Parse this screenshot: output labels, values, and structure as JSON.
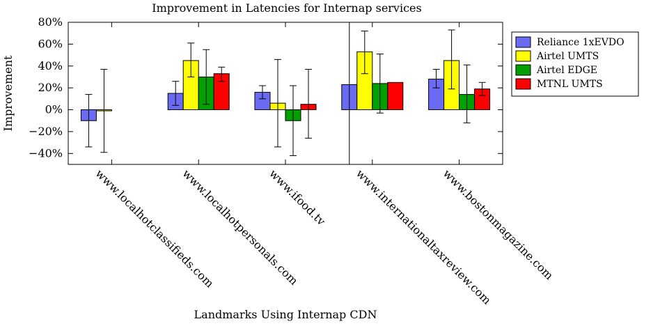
{
  "chart_data": {
    "type": "bar",
    "title": "Improvement in Latencies for Internap services",
    "xlabel": "Landmarks Using Internap CDN",
    "ylabel": "Improvement",
    "ylim": [
      -50,
      80
    ],
    "yticks": [
      -40,
      -20,
      0,
      20,
      40,
      60,
      80
    ],
    "ytick_labels": [
      "−40%",
      "−20%",
      "0%",
      "20%",
      "40%",
      "60%",
      "80%"
    ],
    "grid": false,
    "legend_position": "top-right",
    "categories": [
      "www.localhotclassifieds.com",
      "www.localhotpersonals.com",
      "www.ifood.tv",
      "www.internationaltaxreview.com",
      "www.bostonmagazine.com"
    ],
    "series": [
      {
        "name": "Reliance 1xEVDO",
        "color": "#6a6af2",
        "values": [
          -10,
          15,
          16,
          23,
          28
        ],
        "err_low": [
          -34,
          4,
          10,
          -100,
          20
        ],
        "err_high": [
          14,
          26,
          22,
          100,
          37
        ]
      },
      {
        "name": "Airtel UMTS",
        "color": "#ffff00",
        "values": [
          -1,
          45,
          6,
          53,
          45
        ],
        "err_low": [
          -39,
          30,
          -34,
          33,
          19
        ],
        "err_high": [
          37,
          61,
          46,
          72,
          73
        ]
      },
      {
        "name": "Airtel EDGE",
        "color": "#00a000",
        "values": [
          null,
          30,
          -10,
          24,
          14
        ],
        "err_low": [
          null,
          5,
          -42,
          -3,
          -12
        ],
        "err_high": [
          null,
          55,
          22,
          51,
          41
        ]
      },
      {
        "name": "MTNL UMTS",
        "color": "#ff0000",
        "values": [
          null,
          33,
          5,
          25,
          19
        ],
        "err_low": [
          null,
          26,
          -26,
          null,
          13
        ],
        "err_high": [
          null,
          39,
          37,
          null,
          25
        ]
      }
    ]
  }
}
